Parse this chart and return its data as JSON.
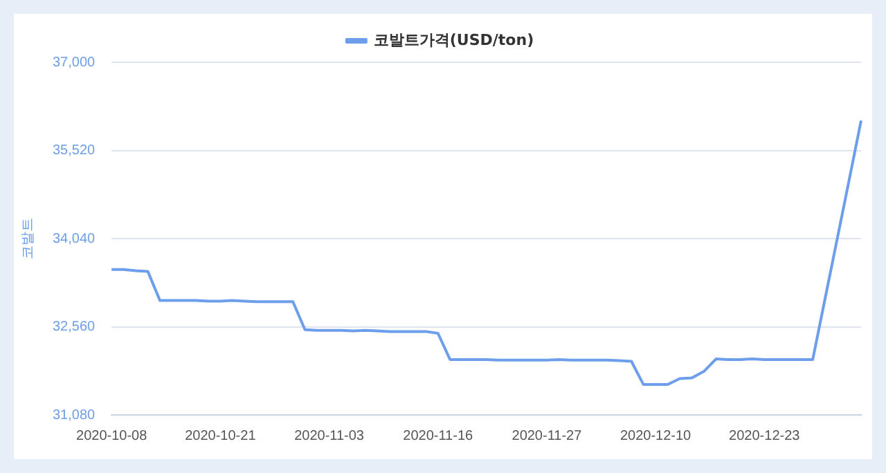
{
  "chart_data": {
    "type": "line",
    "ylabel": "코발트",
    "legend": "top",
    "categories": [
      "2020-10-08",
      null,
      null,
      null,
      null,
      null,
      null,
      null,
      null,
      "2020-10-21",
      null,
      null,
      null,
      null,
      null,
      null,
      null,
      null,
      "2020-11-03",
      null,
      null,
      null,
      null,
      null,
      null,
      null,
      null,
      "2020-11-16",
      null,
      null,
      null,
      null,
      null,
      null,
      null,
      null,
      "2020-11-27",
      null,
      null,
      null,
      null,
      null,
      null,
      null,
      null,
      "2020-12-10",
      null,
      null,
      null,
      null,
      null,
      null,
      null,
      null,
      "2020-12-23",
      null,
      null,
      null,
      null,
      null,
      null,
      null,
      null
    ],
    "series": [
      {
        "name": "코발트가격(USD/ton)",
        "color": "#6d9eeb",
        "values": [
          33520,
          33520,
          33500,
          33490,
          33000,
          33000,
          33000,
          33000,
          32990,
          32990,
          33000,
          32990,
          32980,
          32980,
          32980,
          32980,
          32510,
          32500,
          32500,
          32500,
          32490,
          32500,
          32490,
          32480,
          32480,
          32480,
          32480,
          32450,
          32010,
          32010,
          32010,
          32010,
          32000,
          32000,
          32000,
          32000,
          32000,
          32010,
          32000,
          32000,
          32000,
          32000,
          31990,
          31980,
          31590,
          31590,
          31590,
          31690,
          31700,
          31810,
          32020,
          32010,
          32010,
          32020,
          32010,
          32010,
          32010,
          32010,
          32010,
          33010,
          34010,
          35010,
          36020
        ]
      }
    ],
    "ylim": [
      31080,
      37000
    ],
    "yticks": [
      {
        "value": 31080,
        "label": "31,080"
      },
      {
        "value": 32560,
        "label": "32,560"
      },
      {
        "value": 34040,
        "label": "34,040"
      },
      {
        "value": 35520,
        "label": "35,520"
      },
      {
        "value": 37000,
        "label": "37,000"
      }
    ],
    "grid": "y",
    "marker": "none",
    "line_style": "solid"
  }
}
